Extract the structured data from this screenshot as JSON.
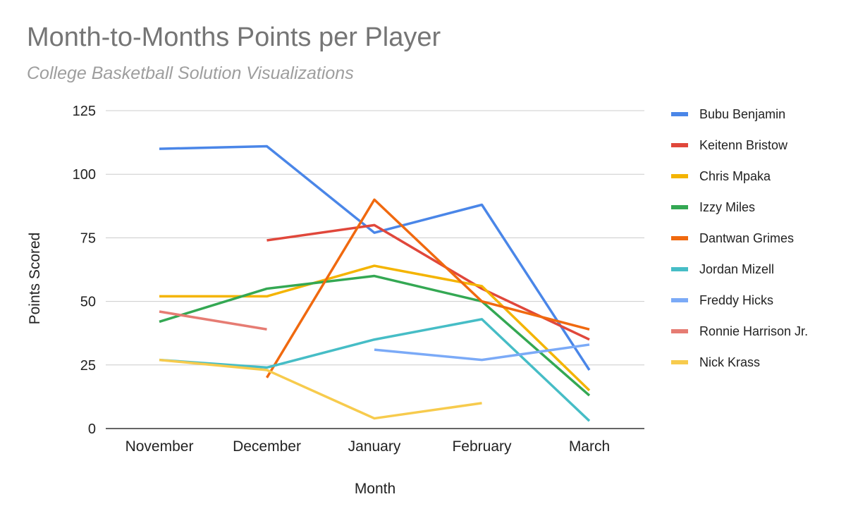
{
  "chart_data": {
    "type": "line",
    "title": "Month-to-Months Points per Player",
    "subtitle": "College Basketball Solution Visualizations",
    "xlabel": "Month",
    "ylabel": "Points Scored",
    "categories": [
      "November",
      "December",
      "January",
      "February",
      "March"
    ],
    "ylim": [
      0,
      125
    ],
    "yticks": [
      0,
      25,
      50,
      75,
      100,
      125
    ],
    "grid": true,
    "legend_position": "right",
    "series": [
      {
        "name": "Bubu Benjamin",
        "color": "#4a86e8",
        "values": [
          110,
          111,
          77,
          88,
          23
        ]
      },
      {
        "name": "Keitenn Bristow",
        "color": "#e0473b",
        "values": [
          null,
          74,
          80,
          55,
          35
        ]
      },
      {
        "name": "Chris Mpaka",
        "color": "#f4b400",
        "values": [
          52,
          52,
          64,
          56,
          15
        ]
      },
      {
        "name": "Izzy Miles",
        "color": "#34a853",
        "values": [
          42,
          55,
          60,
          50,
          13
        ]
      },
      {
        "name": "Dantwan Grimes",
        "color": "#f0690f",
        "values": [
          null,
          20,
          90,
          50,
          39
        ]
      },
      {
        "name": "Jordan Mizell",
        "color": "#46bdc6",
        "values": [
          27,
          24,
          35,
          43,
          3
        ]
      },
      {
        "name": "Freddy Hicks",
        "color": "#7baaf7",
        "values": [
          null,
          null,
          31,
          27,
          33
        ]
      },
      {
        "name": "Ronnie Harrison Jr.",
        "color": "#e67c73",
        "values": [
          46,
          39,
          null,
          null,
          null
        ]
      },
      {
        "name": "Nick Krass",
        "color": "#f7cb4d",
        "values": [
          27,
          23,
          4,
          10,
          null
        ]
      }
    ]
  }
}
